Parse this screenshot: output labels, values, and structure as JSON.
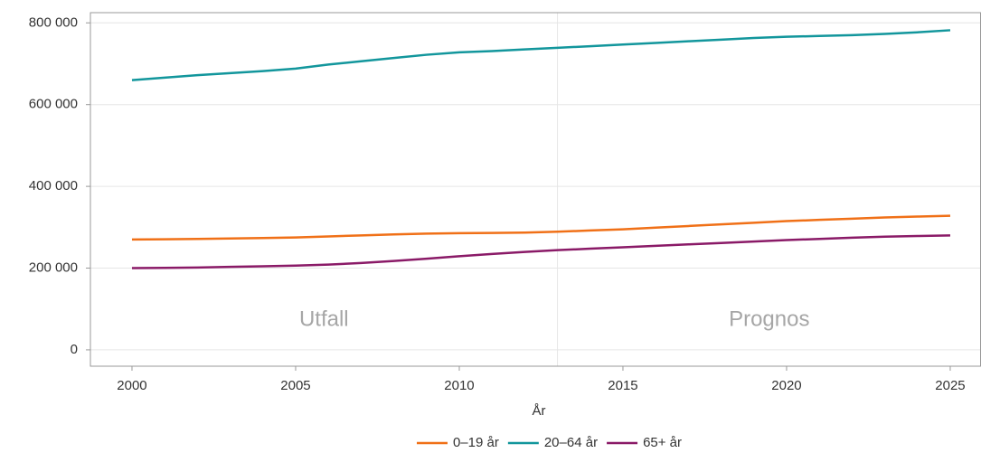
{
  "chart_data": {
    "type": "line",
    "x_label": "År",
    "x": [
      2000,
      2001,
      2002,
      2003,
      2004,
      2005,
      2006,
      2007,
      2008,
      2009,
      2010,
      2011,
      2012,
      2013,
      2014,
      2015,
      2016,
      2017,
      2018,
      2019,
      2020,
      2021,
      2022,
      2023,
      2024,
      2025
    ],
    "series": [
      {
        "name": "0–19 år",
        "color": "#f07017",
        "values": [
          270000,
          270500,
          271500,
          272500,
          273500,
          275000,
          277500,
          280000,
          282500,
          284500,
          285500,
          286000,
          287000,
          289000,
          292000,
          295000,
          299000,
          303000,
          307000,
          311000,
          315000,
          318000,
          321000,
          324000,
          326000,
          328000
        ]
      },
      {
        "name": "20–64 år",
        "color": "#12969c",
        "values": [
          660000,
          666000,
          672000,
          677000,
          682000,
          688000,
          698000,
          706000,
          714000,
          722000,
          728000,
          731000,
          735000,
          739000,
          743000,
          747000,
          751000,
          755000,
          759000,
          763000,
          766000,
          768000,
          770000,
          773000,
          777000,
          782000
        ]
      },
      {
        "name": "65+ år",
        "color": "#8a1a67",
        "values": [
          200000,
          200500,
          201500,
          203000,
          204500,
          206000,
          208500,
          212500,
          217500,
          223000,
          229000,
          234500,
          239500,
          244000,
          247500,
          251000,
          254500,
          258000,
          261500,
          265000,
          268500,
          271500,
          274500,
          277000,
          278500,
          280000
        ]
      }
    ],
    "forecast_start": 2013,
    "annotations": [
      "Utfall",
      "Prognos"
    ],
    "xlim": [
      1998.73,
      2025.94
    ],
    "xticks": [
      2000,
      2005,
      2010,
      2015,
      2020,
      2025
    ],
    "ylim": [
      -40000,
      825000
    ],
    "yticks": [
      0,
      {
        "value": 200000,
        "label": "200 000"
      },
      {
        "value": 400000,
        "label": "400 000"
      },
      {
        "value": 600000,
        "label": "600 000"
      },
      {
        "value": 800000,
        "label": "800 000"
      }
    ],
    "grid": true,
    "legend": "bottom"
  }
}
